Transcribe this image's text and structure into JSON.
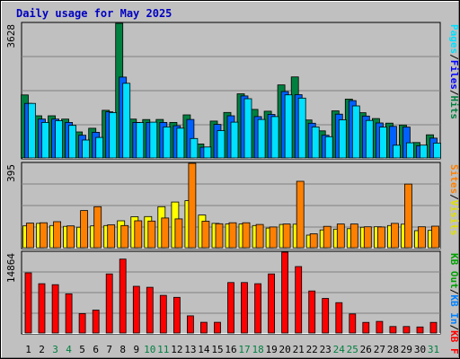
{
  "chart_data": {
    "type": "bar",
    "title": "Daily usage for May 2025",
    "days": [
      "1",
      "2",
      "3",
      "4",
      "5",
      "6",
      "7",
      "8",
      "9",
      "10",
      "11",
      "12",
      "13",
      "14",
      "15",
      "16",
      "17",
      "18",
      "19",
      "20",
      "21",
      "22",
      "23",
      "24",
      "25",
      "26",
      "27",
      "28",
      "29",
      "30",
      "31"
    ],
    "weekend_days": [
      "3",
      "4",
      "10",
      "11",
      "17",
      "18",
      "24",
      "25",
      "31"
    ],
    "panels": [
      {
        "name": "hits-files-pages",
        "ymax_label": "3628",
        "ymax": 3628,
        "legend": [
          "Hits",
          "/",
          "Files",
          "/",
          "Pages"
        ],
        "legend_colors": [
          "#008040",
          "#000000",
          "#0000ff",
          "#000000",
          "#00e0ff"
        ],
        "series": [
          {
            "name": "Hits",
            "color": "#008040",
            "values": [
              1697,
              1136,
              1136,
              1047,
              702,
              801,
              1284,
              3628,
              1048,
              1034,
              1037,
              957,
              1162,
              378,
              994,
              1226,
              1729,
              1309,
              1260,
              1969,
              2184,
              1023,
              730,
              1270,
              1586,
              1219,
              1063,
              939,
              887,
              416,
              623
            ]
          },
          {
            "name": "Files",
            "color": "#0060ff",
            "values": [
              1470,
              1047,
              1047,
              958,
              613,
              692,
              1243,
              2179,
              958,
              957,
              958,
              869,
              1037,
              289,
              905,
              1137,
              1671,
              1116,
              1172,
              1791,
              1704,
              935,
              611,
              1181,
              1545,
              1130,
              943,
              851,
              831,
              327,
              534
            ]
          },
          {
            "name": "Pages",
            "color": "#00e0ff",
            "values": [
              1470,
              958,
              1007,
              878,
              483,
              554,
              1224,
              2013,
              954,
              966,
              838,
              804,
              525,
              295,
              737,
              966,
              1596,
              1037,
              1116,
              1701,
              1613,
              837,
              573,
              1027,
              1404,
              1011,
              832,
              344,
              408,
              345,
              401
            ]
          }
        ]
      },
      {
        "name": "visits-sites",
        "ymax_label": "395",
        "ymax": 395,
        "legend": [
          "Visits",
          "/",
          "Sites"
        ],
        "legend_colors": [
          "#e0e000",
          "#000000",
          "#ff8000"
        ],
        "series": [
          {
            "name": "Visits",
            "color": "#ffff00",
            "values": [
              102,
              114,
              104,
              100,
              96,
              102,
              104,
              126,
              145,
              146,
              192,
              214,
              220,
              153,
              114,
              111,
              111,
              104,
              92,
              109,
              110,
              59,
              83,
              87,
              89,
              96,
              98,
              104,
              110,
              80,
              81
            ]
          },
          {
            "name": "Sites",
            "color": "#ff8000",
            "values": [
              115,
              117,
              122,
              102,
              174,
              192,
              107,
              104,
              126,
              125,
              139,
              135,
              395,
              124,
              112,
              117,
              117,
              109,
              97,
              111,
              311,
              65,
              100,
              111,
              111,
              98,
              97,
              114,
              298,
              98,
              101
            ]
          }
        ]
      },
      {
        "name": "kbytes",
        "ymax_label": "14864",
        "ymax": 14864,
        "legend": [
          "KB F",
          "/",
          "KB In",
          "/",
          "KB Out"
        ],
        "legend_colors": [
          "#ff0000",
          "#000000",
          "#0080ff",
          "#000000",
          "#00a000"
        ],
        "series": [
          {
            "name": "KB F",
            "color": "#ff0000",
            "values": [
              11060,
              9072,
              8878,
              7208,
              3572,
              4217,
              10868,
              13600,
              8586,
              8413,
              6915,
              6563,
              3157,
              1972,
              1969,
              9286,
              9279,
              9073,
              10867,
              14864,
              12229,
              7736,
              6361,
              5575,
              3509,
              1945,
              2137,
              1191,
              1190,
              1110,
              1950
            ]
          }
        ]
      }
    ]
  }
}
